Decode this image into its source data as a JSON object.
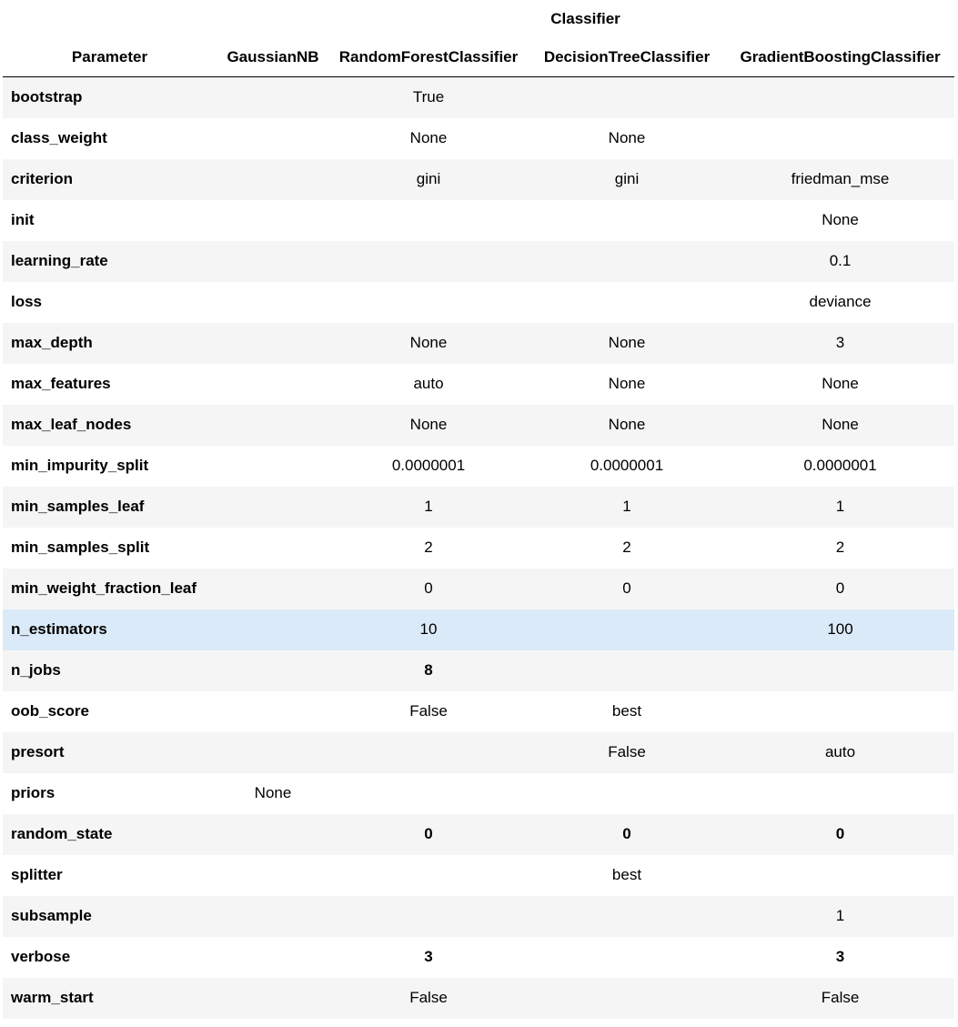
{
  "table": {
    "group_header": "Classifier",
    "index_header": "Parameter",
    "columns": [
      "GaussianNB",
      "RandomForestClassifier",
      "DecisionTreeClassifier",
      "GradientBoostingClassifier"
    ],
    "rows": [
      {
        "param": "bootstrap",
        "values": [
          "",
          "True",
          "",
          ""
        ],
        "bold": [
          false,
          false,
          false,
          false
        ]
      },
      {
        "param": "class_weight",
        "values": [
          "",
          "None",
          "None",
          ""
        ],
        "bold": [
          false,
          false,
          false,
          false
        ]
      },
      {
        "param": "criterion",
        "values": [
          "",
          "gini",
          "gini",
          "friedman_mse"
        ],
        "bold": [
          false,
          false,
          false,
          false
        ]
      },
      {
        "param": "init",
        "values": [
          "",
          "",
          "",
          "None"
        ],
        "bold": [
          false,
          false,
          false,
          false
        ]
      },
      {
        "param": "learning_rate",
        "values": [
          "",
          "",
          "",
          "0.1"
        ],
        "bold": [
          false,
          false,
          false,
          false
        ]
      },
      {
        "param": "loss",
        "values": [
          "",
          "",
          "",
          "deviance"
        ],
        "bold": [
          false,
          false,
          false,
          false
        ]
      },
      {
        "param": "max_depth",
        "values": [
          "",
          "None",
          "None",
          "3"
        ],
        "bold": [
          false,
          false,
          false,
          false
        ]
      },
      {
        "param": "max_features",
        "values": [
          "",
          "auto",
          "None",
          "None"
        ],
        "bold": [
          false,
          false,
          false,
          false
        ]
      },
      {
        "param": "max_leaf_nodes",
        "values": [
          "",
          "None",
          "None",
          "None"
        ],
        "bold": [
          false,
          false,
          false,
          false
        ]
      },
      {
        "param": "min_impurity_split",
        "values": [
          "",
          "0.0000001",
          "0.0000001",
          "0.0000001"
        ],
        "bold": [
          false,
          false,
          false,
          false
        ]
      },
      {
        "param": "min_samples_leaf",
        "values": [
          "",
          "1",
          "1",
          "1"
        ],
        "bold": [
          false,
          false,
          false,
          false
        ]
      },
      {
        "param": "min_samples_split",
        "values": [
          "",
          "2",
          "2",
          "2"
        ],
        "bold": [
          false,
          false,
          false,
          false
        ]
      },
      {
        "param": "min_weight_fraction_leaf",
        "values": [
          "",
          "0",
          "0",
          "0"
        ],
        "bold": [
          false,
          false,
          false,
          false
        ]
      },
      {
        "param": "n_estimators",
        "values": [
          "",
          "10",
          "",
          "100"
        ],
        "bold": [
          false,
          false,
          false,
          false
        ],
        "highlighted": true
      },
      {
        "param": "n_jobs",
        "values": [
          "",
          "8",
          "",
          ""
        ],
        "bold": [
          false,
          true,
          false,
          false
        ]
      },
      {
        "param": "oob_score",
        "values": [
          "",
          "False",
          "best",
          ""
        ],
        "bold": [
          false,
          false,
          false,
          false
        ]
      },
      {
        "param": "presort",
        "values": [
          "",
          "",
          "False",
          "auto"
        ],
        "bold": [
          false,
          false,
          false,
          false
        ]
      },
      {
        "param": "priors",
        "values": [
          "None",
          "",
          "",
          ""
        ],
        "bold": [
          false,
          false,
          false,
          false
        ]
      },
      {
        "param": "random_state",
        "values": [
          "",
          "0",
          "0",
          "0"
        ],
        "bold": [
          false,
          true,
          true,
          true
        ]
      },
      {
        "param": "splitter",
        "values": [
          "",
          "",
          "best",
          ""
        ],
        "bold": [
          false,
          false,
          false,
          false
        ]
      },
      {
        "param": "subsample",
        "values": [
          "",
          "",
          "",
          "1"
        ],
        "bold": [
          false,
          false,
          false,
          false
        ]
      },
      {
        "param": "verbose",
        "values": [
          "",
          "3",
          "",
          "3"
        ],
        "bold": [
          false,
          true,
          false,
          true
        ]
      },
      {
        "param": "warm_start",
        "values": [
          "",
          "False",
          "",
          "False"
        ],
        "bold": [
          false,
          false,
          false,
          false
        ]
      }
    ]
  }
}
